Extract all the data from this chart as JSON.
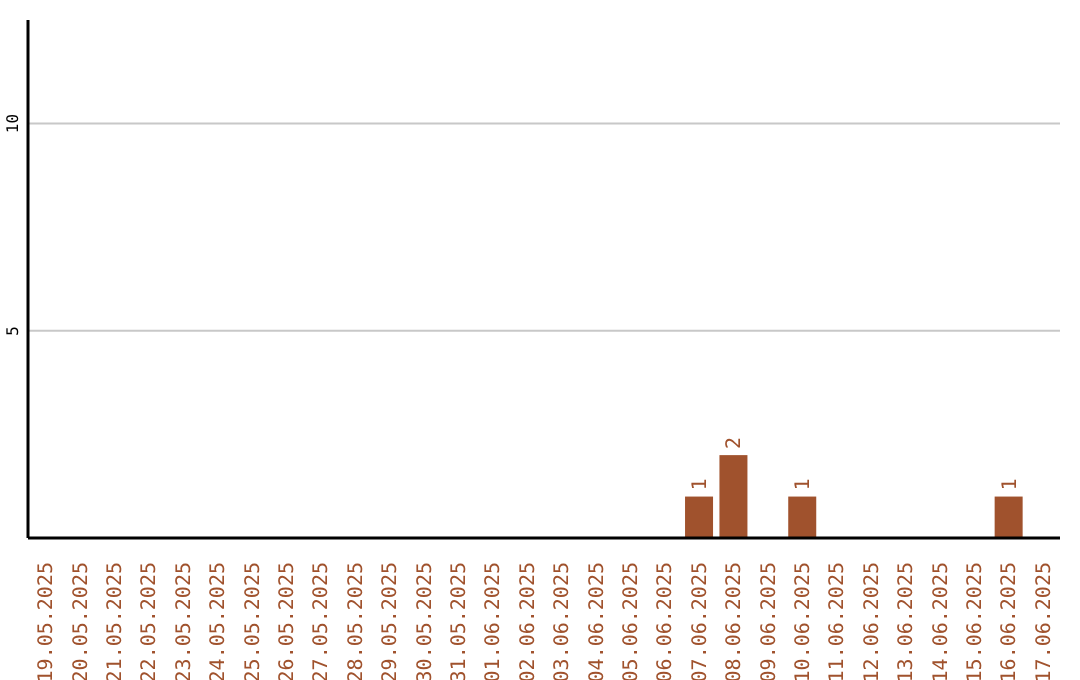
{
  "chart_data": {
    "type": "bar",
    "categories": [
      "19.05.2025",
      "20.05.2025",
      "21.05.2025",
      "22.05.2025",
      "23.05.2025",
      "24.05.2025",
      "25.05.2025",
      "26.05.2025",
      "27.05.2025",
      "28.05.2025",
      "29.05.2025",
      "30.05.2025",
      "31.05.2025",
      "01.06.2025",
      "02.06.2025",
      "03.06.2025",
      "04.06.2025",
      "05.06.2025",
      "06.06.2025",
      "07.06.2025",
      "08.06.2025",
      "09.06.2025",
      "10.06.2025",
      "11.06.2025",
      "12.06.2025",
      "13.06.2025",
      "14.06.2025",
      "15.06.2025",
      "16.06.2025",
      "17.06.2025"
    ],
    "values": [
      0,
      0,
      0,
      0,
      0,
      0,
      0,
      0,
      0,
      0,
      0,
      0,
      0,
      0,
      0,
      0,
      0,
      0,
      0,
      1,
      2,
      0,
      1,
      0,
      0,
      0,
      0,
      0,
      1,
      0
    ],
    "value_labels": [
      null,
      null,
      null,
      null,
      null,
      null,
      null,
      null,
      null,
      null,
      null,
      null,
      null,
      null,
      null,
      null,
      null,
      null,
      null,
      "1",
      "2",
      null,
      "1",
      null,
      null,
      null,
      null,
      null,
      "1",
      null
    ],
    "color": "#a0522d",
    "ylim": [
      0,
      12.5
    ],
    "yticks": [
      5,
      10
    ],
    "grid": "y"
  }
}
